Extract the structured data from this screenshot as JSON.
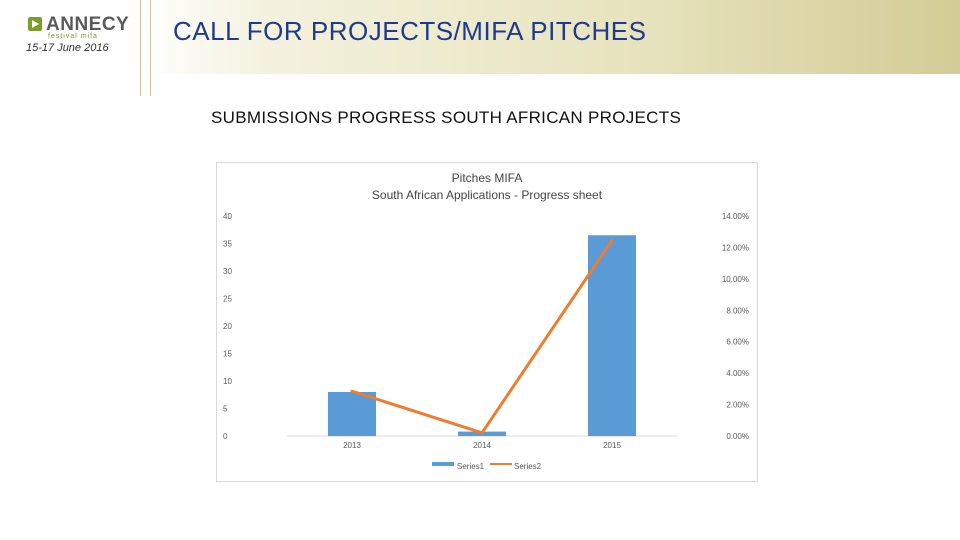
{
  "header": {
    "date": "15-17 June 2016",
    "title": "CALL FOR PROJECTS/MIFA PITCHES",
    "logo_text": "ANNECY",
    "logo_sub": "festival mifa"
  },
  "slide": {
    "subtitle": "SUBMISSIONS PROGRESS SOUTH AFRICAN PROJECTS"
  },
  "chart_data": {
    "type": "bar",
    "title": "Pitches MIFA",
    "subtitle": "South African Applications - Progress sheet",
    "categories": [
      "2013",
      "2014",
      "2015"
    ],
    "series": [
      {
        "name": "Series1",
        "type": "bar",
        "axis": "left",
        "values": [
          8,
          0.8,
          36.5
        ],
        "color": "#5b9bd5"
      },
      {
        "name": "Series2",
        "type": "line",
        "axis": "right",
        "values": [
          0.0285,
          0.002,
          0.1245
        ],
        "color": "#ed7d31"
      }
    ],
    "yleft": {
      "ylim": [
        0,
        40
      ],
      "ticks": [
        0,
        5,
        10,
        15,
        20,
        25,
        30,
        35,
        40
      ]
    },
    "yright": {
      "ylim": [
        0,
        0.14
      ],
      "ticks": [
        "0.00%",
        "2.00%",
        "4.00%",
        "6.00%",
        "8.00%",
        "10.00%",
        "12.00%",
        "14.00%"
      ]
    },
    "grid": false,
    "legend": "bottom"
  }
}
